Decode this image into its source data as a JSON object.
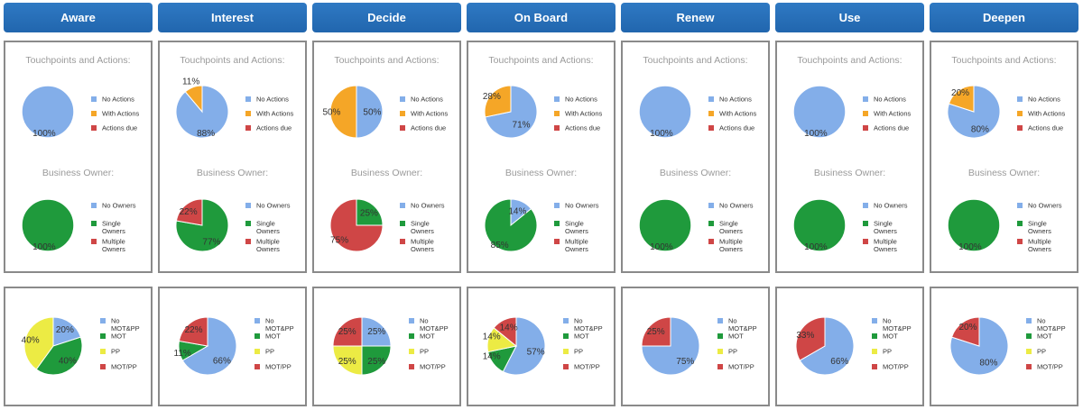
{
  "colors": {
    "blue": "#83aee9",
    "orange": "#f5a627",
    "red": "#cf4646",
    "green": "#1f9a3c",
    "yellow": "#eceb44",
    "header": "#2a72bb"
  },
  "legends": {
    "touch": [
      "No Actions",
      "With Actions",
      "Actions due"
    ],
    "owner": [
      [
        "No Owners"
      ],
      [
        "Single",
        "Owners"
      ],
      [
        "Multiple",
        "Owners"
      ]
    ],
    "mot": [
      [
        "No",
        "MOT&PP"
      ],
      [
        "MOT"
      ],
      [
        "PP"
      ],
      [
        "MOT/PP"
      ]
    ]
  },
  "stages": [
    {
      "name": "Aware",
      "touchpoints_title": "Touchpoints and Actions:",
      "owner_title": "Business Owner:",
      "touchpoints": [
        100,
        0,
        0
      ],
      "owners": [
        0,
        100,
        0
      ],
      "mot": [
        20,
        40,
        40,
        0
      ],
      "touch_labels": [
        "100%"
      ],
      "owner_labels": [
        "100%"
      ],
      "mot_labels": [
        "20%",
        "40%",
        "40%"
      ]
    },
    {
      "name": "Interest",
      "touchpoints_title": "Touchpoints and Actions:",
      "owner_title": "Business Owner:",
      "touchpoints": [
        88,
        11,
        0
      ],
      "owners": [
        0,
        77,
        22
      ],
      "mot": [
        66,
        11,
        0,
        22
      ],
      "touch_labels": [
        "11%",
        "88%"
      ],
      "owner_labels": [
        "22%",
        "77%"
      ],
      "mot_labels": [
        "22%",
        "11%",
        "66%"
      ]
    },
    {
      "name": "Decide",
      "touchpoints_title": "Touchpoints and Actions:",
      "owner_title": "Business Owner:",
      "touchpoints": [
        50,
        50,
        0
      ],
      "owners": [
        0,
        25,
        75
      ],
      "mot": [
        25,
        25,
        25,
        25
      ],
      "touch_labels": [
        "50%",
        "50%"
      ],
      "owner_labels": [
        "25%",
        "75%"
      ],
      "mot_labels": [
        "25%",
        "25%",
        "25%",
        "25%"
      ]
    },
    {
      "name": "On Board",
      "touchpoints_title": "Touchpoints and Actions:",
      "owner_title": "Business Owner:",
      "touchpoints": [
        71,
        28,
        0
      ],
      "owners": [
        14,
        85,
        0
      ],
      "mot": [
        57,
        14,
        14,
        14
      ],
      "touch_labels": [
        "28%",
        "71%"
      ],
      "owner_labels": [
        "14%",
        "85%"
      ],
      "mot_labels": [
        "14%",
        "14%",
        "14%",
        "57%"
      ]
    },
    {
      "name": "Renew",
      "touchpoints_title": "Touchpoints and Actions:",
      "owner_title": "Business Owner:",
      "touchpoints": [
        100,
        0,
        0
      ],
      "owners": [
        0,
        100,
        0
      ],
      "mot": [
        75,
        0,
        0,
        25
      ],
      "touch_labels": [
        "100%"
      ],
      "owner_labels": [
        "100%"
      ],
      "mot_labels": [
        "25%",
        "75%"
      ]
    },
    {
      "name": "Use",
      "touchpoints_title": "Touchpoints and Actions:",
      "owner_title": "Business Owner:",
      "touchpoints": [
        100,
        0,
        0
      ],
      "owners": [
        0,
        100,
        0
      ],
      "mot": [
        66,
        0,
        0,
        33
      ],
      "touch_labels": [
        "100%"
      ],
      "owner_labels": [
        "100%"
      ],
      "mot_labels": [
        "33%",
        "66%"
      ]
    },
    {
      "name": "Deepen",
      "touchpoints_title": "Touchpoints and Actions:",
      "owner_title": "Business Owner:",
      "touchpoints": [
        80,
        20,
        0
      ],
      "owners": [
        0,
        100,
        0
      ],
      "mot": [
        80,
        0,
        0,
        20
      ],
      "touch_labels": [
        "20%",
        "80%"
      ],
      "owner_labels": [
        "100%"
      ],
      "mot_labels": [
        "20%",
        "80%"
      ]
    }
  ],
  "chart_data": {
    "type": "pie",
    "categories": [
      "Aware",
      "Interest",
      "Decide",
      "On Board",
      "Renew",
      "Use",
      "Deepen"
    ],
    "series": [
      {
        "name": "Touchpoints and Actions:",
        "slices": [
          "No Actions",
          "With Actions",
          "Actions due"
        ],
        "values": [
          [
            100,
            0,
            0
          ],
          [
            88,
            11,
            0
          ],
          [
            50,
            50,
            0
          ],
          [
            71,
            28,
            0
          ],
          [
            100,
            0,
            0
          ],
          [
            100,
            0,
            0
          ],
          [
            80,
            20,
            0
          ]
        ]
      },
      {
        "name": "Business Owner:",
        "slices": [
          "No Owners",
          "Single Owners",
          "Multiple Owners"
        ],
        "values": [
          [
            0,
            100,
            0
          ],
          [
            0,
            77,
            22
          ],
          [
            0,
            25,
            75
          ],
          [
            14,
            85,
            0
          ],
          [
            0,
            100,
            0
          ],
          [
            0,
            100,
            0
          ],
          [
            0,
            100,
            0
          ]
        ]
      },
      {
        "slices": [
          "No MOT&PP",
          "MOT",
          "PP",
          "MOT/PP"
        ],
        "values": [
          [
            20,
            40,
            40,
            0
          ],
          [
            66,
            11,
            0,
            22
          ],
          [
            25,
            25,
            25,
            25
          ],
          [
            57,
            14,
            14,
            14
          ],
          [
            75,
            0,
            0,
            25
          ],
          [
            66,
            0,
            0,
            33
          ],
          [
            80,
            0,
            0,
            20
          ]
        ]
      }
    ]
  }
}
